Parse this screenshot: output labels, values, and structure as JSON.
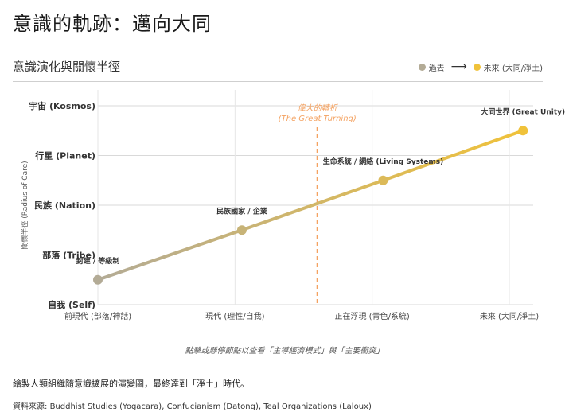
{
  "page": {
    "title": "意識的軌跡：邁向大同"
  },
  "card": {
    "chart_title": "意識演化與關懷半徑",
    "legend": {
      "past_label": "過去",
      "future_label": "未來 (大同/淨土)",
      "past_color": "#b3ab96",
      "future_color": "#f0c23a",
      "arrow_glyph": "⟶"
    }
  },
  "chart_data": {
    "type": "line",
    "title": "意識演化與關懷半徑",
    "ylabel": "關懷半徑 (Radius of Care)",
    "xlabel": "",
    "categories": [
      "前現代 (部落/神話)",
      "現代 (理性/自我)",
      "正在浮現 (青色/系統)",
      "未來 (大同/淨土)"
    ],
    "x_range": [
      0,
      3
    ],
    "y_categories": [
      "自我 (Self)",
      "部落 (Tribe)",
      "民族 (Nation)",
      "行星 (Planet)",
      "宇宙 (Kosmos)"
    ],
    "y_range": [
      0,
      4
    ],
    "grid": true,
    "points": [
      {
        "x": 0,
        "y": 0.5,
        "label": "封建 / 等級制"
      },
      {
        "x": 1.05,
        "y": 1.5,
        "label": "民族國家 / 企業"
      },
      {
        "x": 2.08,
        "y": 2.5,
        "label": "生命系統 / 網絡 (Living Systems)"
      },
      {
        "x": 3.1,
        "y": 3.5,
        "label": "大同世界 (Great Unity)"
      }
    ],
    "color_start": "#b3ab96",
    "color_end": "#f0c23a",
    "annotation": {
      "x": 1.6,
      "label_line1": "偉大的轉折",
      "label_line2": "(The Great Turning)",
      "color": "#f4a261"
    }
  },
  "hint": "點擊或懸停節點以查看「主導經濟模式」與「主要衝突」",
  "description": "繪製人類組織隨意識擴展的演變圖，最終達到「淨土」時代。",
  "sources": {
    "prefix": "資料來源: ",
    "links": [
      "Buddhist Studies (Yogacara)",
      "Confucianism (Datong)",
      "Teal Organizations (Laloux)"
    ],
    "separator": ", "
  }
}
